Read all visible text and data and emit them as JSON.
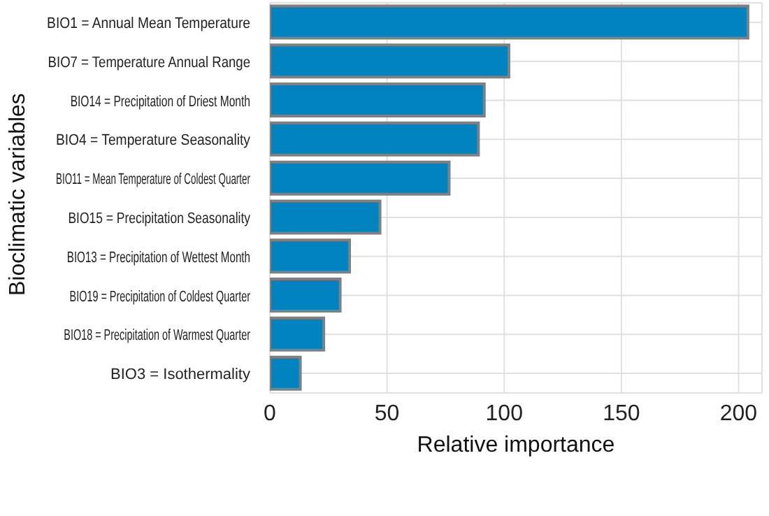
{
  "chart_data": {
    "type": "bar",
    "orientation": "horizontal",
    "xlabel": "Relative importance",
    "ylabel": "Bioclimatic variables",
    "categories": [
      "BIO1 = Annual Mean Temperature",
      "BIO7 = Temperature Annual Range",
      "BIO14 = Precipitation of Driest Month",
      "BIO4 = Temperature Seasonality",
      "BIO11 = Mean Temperature of Coldest Quarter",
      "BIO15 = Precipitation Seasonality",
      "BIO13 = Precipitation of Wettest Month",
      "BIO19 = Precipitation of Coldest Quarter",
      "BIO18 = Precipitation of Warmest Quarter",
      "BIO3 = Isothermality"
    ],
    "values": [
      204,
      102,
      91.5,
      89,
      76.5,
      47,
      34,
      30,
      23,
      13
    ],
    "color": "#0083bf",
    "xlim": [
      0,
      210
    ],
    "xticks": [
      0,
      50,
      100,
      150,
      200
    ],
    "grid": true,
    "legend": false
  }
}
